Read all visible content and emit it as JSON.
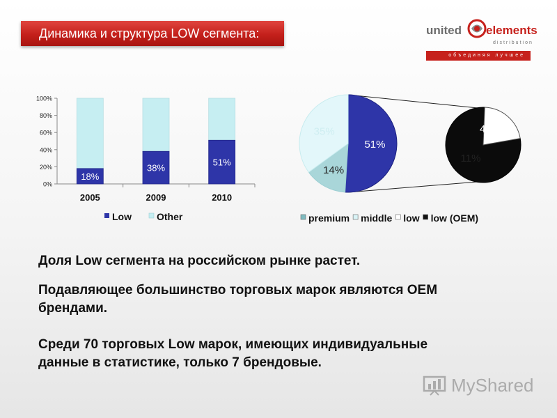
{
  "title": "Динамика и структура LOW сегмента:",
  "logo": {
    "word1": "united",
    "word2": "elements",
    "word3": "distribution",
    "tagline": "объединяя лучшее",
    "brand_color": "#c6211c"
  },
  "chart_data": [
    {
      "type": "bar",
      "stacked": true,
      "categories": [
        "2005",
        "2009",
        "2010"
      ],
      "series": [
        {
          "name": "Low",
          "values": [
            18,
            38,
            51
          ],
          "labels": [
            "18%",
            "38%",
            "51%"
          ],
          "color": "#2e35a8"
        },
        {
          "name": "Other",
          "values": [
            82,
            62,
            49
          ],
          "color": "#c6eef2"
        }
      ],
      "yticks": [
        "0%",
        "20%",
        "40%",
        "60%",
        "80%",
        "100%"
      ],
      "ylim": [
        0,
        100
      ],
      "grid": false,
      "legend_position": "bottom"
    },
    {
      "type": "pie",
      "variant": "pie-of-pie",
      "legend": [
        {
          "name": "premium",
          "color": "#7fbcc0"
        },
        {
          "name": "middle",
          "color": "#d9f3f6"
        },
        {
          "name": "low",
          "color": "#ffffff"
        },
        {
          "name": "low (OEM)",
          "color": "#111111"
        }
      ],
      "main_pie": [
        {
          "label": "51%",
          "value": 51,
          "color": "#2e35a8"
        },
        {
          "label": "14%",
          "value": 14,
          "color": "#a9d6d9"
        },
        {
          "label": "35%",
          "value": 35,
          "color": "#e3f7fa"
        }
      ],
      "sub_pie": [
        {
          "label": "40%",
          "value": 40,
          "color": "#0b0b0b"
        },
        {
          "label": "11%",
          "value": 11,
          "color": "#ffffff"
        }
      ]
    }
  ],
  "body": {
    "line1": "Доля Low сегмента на российском рынке растет.",
    "line2a": "Подавляющее большинство торговых марок являются ОЕМ",
    "line2b": "брендами.",
    "line3a": "Среди 70 торговых Low марок, имеющих индивидуальные",
    "line3b": "данные в статистике, только 7 брендовые."
  },
  "watermark": {
    "text": "MyShared",
    "icon": "chart-board-icon"
  }
}
